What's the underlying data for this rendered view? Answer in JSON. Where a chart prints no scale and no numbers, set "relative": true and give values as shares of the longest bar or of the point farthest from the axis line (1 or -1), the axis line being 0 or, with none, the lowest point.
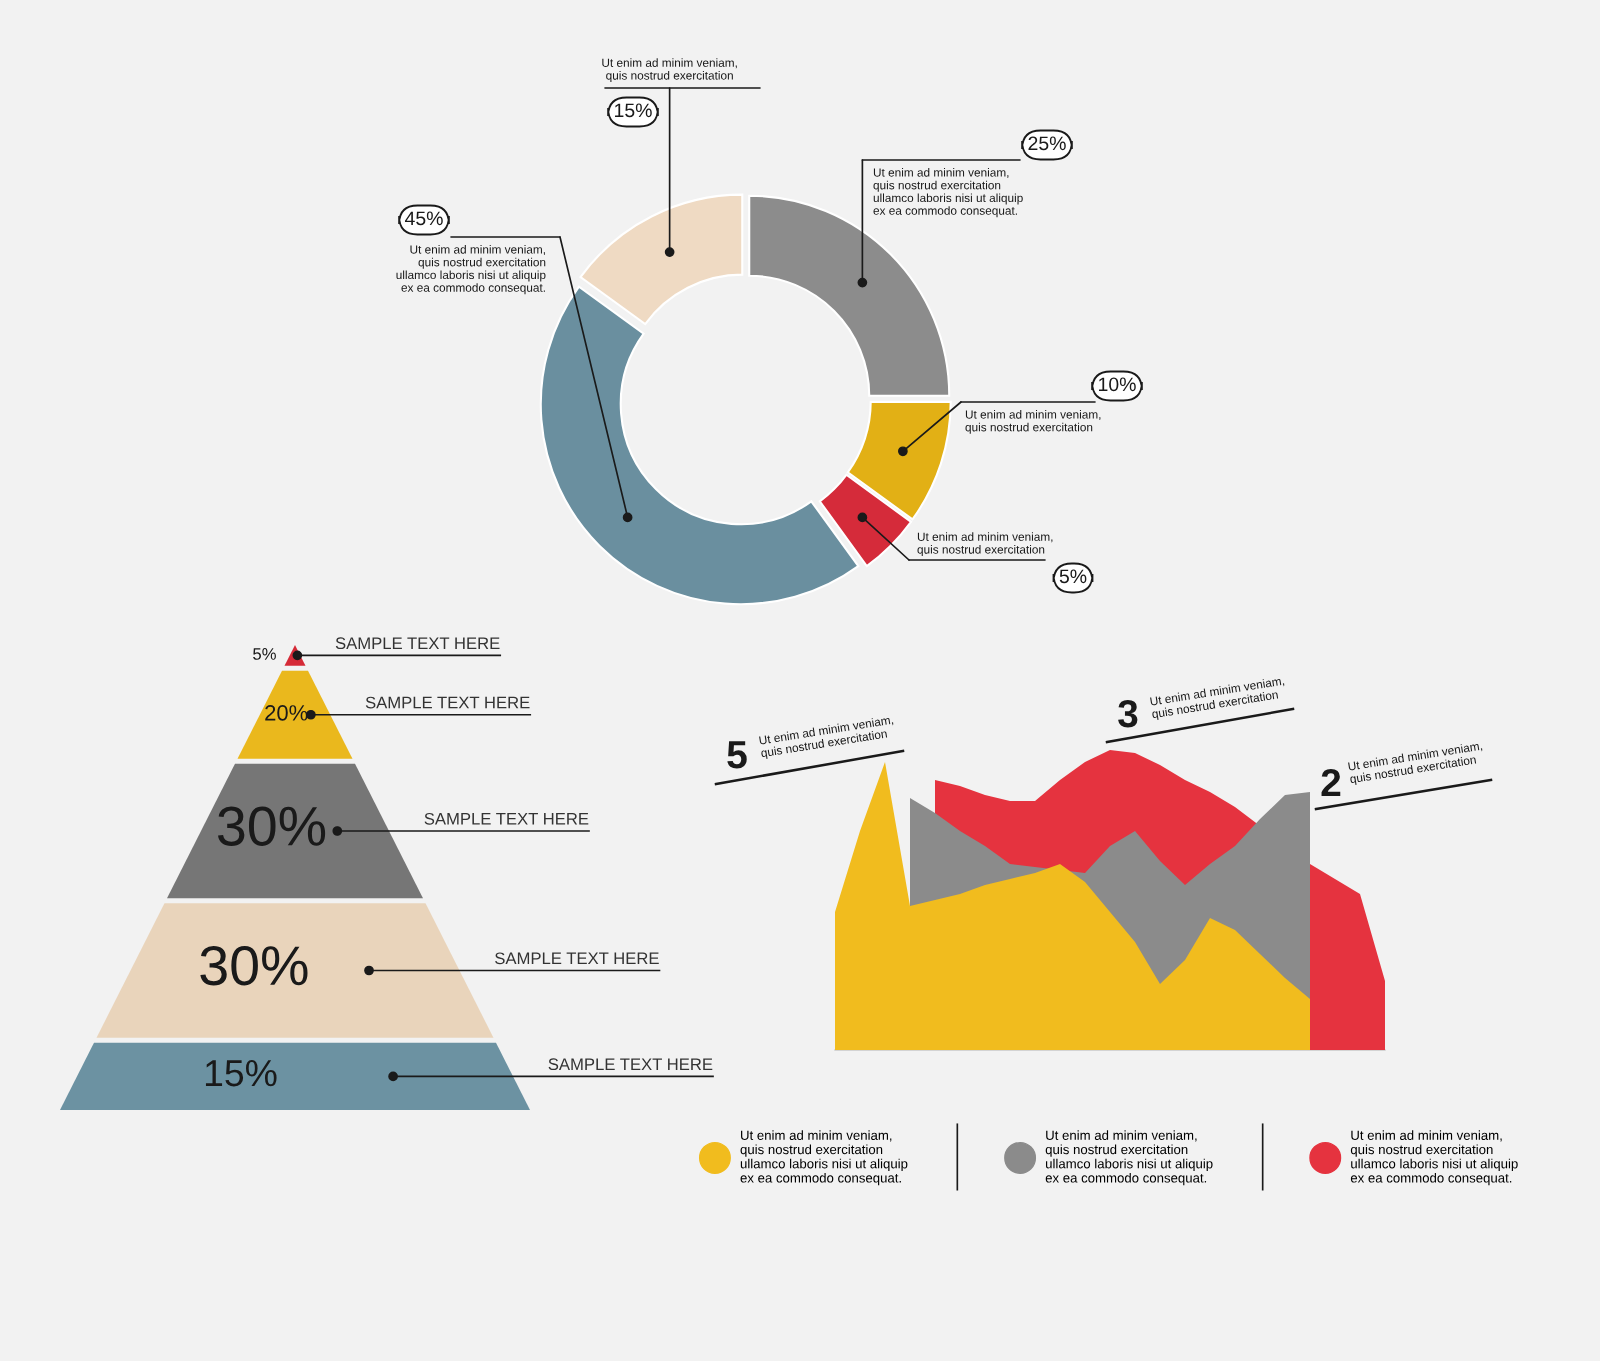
{
  "chart_data": [
    {
      "type": "donut",
      "categories": [
        "Ut enim ad minim veniam,\nquis nostrud exercitation\nullamco laboris nisi ut aliquip\nex ea commodo consequat.",
        "Ut enim ad minim veniam,\nquis nostrud exercitation",
        "Ut enim ad minim veniam,\nquis nostrud exercitation",
        "Ut enim ad minim veniam,\nquis nostrud exercitation\nullamco laboris nisi ut aliquip\nex ea commodo consequat.",
        "Ut enim ad minim veniam,\nquis nostrud exercitation"
      ],
      "values": [
        25,
        10,
        5,
        45,
        15
      ],
      "value_labels": [
        "25%",
        "10%",
        "5%",
        "45%",
        "15%"
      ],
      "colors": [
        "#8c8c8c",
        "#e2b015",
        "#d52b3a",
        "#6a8f9f",
        "#efdac3"
      ]
    },
    {
      "type": "other",
      "categories": [
        "SAMPLE TEXT HERE",
        "SAMPLE TEXT HERE",
        "SAMPLE TEXT HERE",
        "SAMPLE TEXT HERE",
        "SAMPLE TEXT HERE"
      ],
      "values": [
        5,
        20,
        30,
        30,
        15
      ],
      "value_labels": [
        "5%",
        "20%",
        "30%",
        "30%",
        "15%"
      ],
      "colors": [
        "#d52a37",
        "#eab81d",
        "#767676",
        "#e9d4bb",
        "#6c92a2"
      ]
    },
    {
      "type": "area",
      "relative": true,
      "categories": [
        null,
        null,
        null,
        null,
        null,
        null,
        null,
        null,
        null,
        null,
        null,
        null,
        null,
        null,
        null,
        null,
        null,
        null,
        null,
        null,
        null,
        null,
        null
      ],
      "series": [
        {
          "name": "Ut enim ad minim veniam,\nquis nostrud exercitation\nullamco laboris nisi ut aliquip\nex ea commodo consequat.",
          "color": "#f1bc1e",
          "values": [
            0.46,
            0.73,
            0.96,
            0.48,
            0.5,
            0.52,
            0.55,
            0.57,
            0.59,
            0.62,
            0.56,
            0.46,
            0.36,
            0.22,
            0.3,
            0.44,
            0.4,
            0.32,
            0.24,
            0.17,
            null,
            null,
            null
          ]
        },
        {
          "name": "Ut enim ad minim veniam,\nquis nostrud exercitation\nullamco laboris nisi ut aliquip\nex ea commodo consequat.",
          "color": "#8b8b8b",
          "values": [
            null,
            null,
            null,
            0.84,
            0.79,
            0.73,
            0.68,
            0.62,
            null,
            null,
            0.59,
            0.68,
            0.73,
            0.63,
            0.55,
            0.62,
            0.68,
            0.77,
            0.85,
            0.86,
            null,
            null,
            null
          ]
        },
        {
          "name": "Ut enim ad minim veniam,\nquis nostrud exercitation\nullamco laboris nisi ut aliquip\nex ea commodo consequat.",
          "color": "#e5333f",
          "values": [
            null,
            null,
            null,
            null,
            0.9,
            0.88,
            0.85,
            0.83,
            0.83,
            0.9,
            0.96,
            1.0,
            0.99,
            0.95,
            0.9,
            0.86,
            0.81,
            null,
            null,
            0.62,
            0.57,
            0.52,
            0.23
          ]
        }
      ],
      "annotations": [
        "5",
        "Ut enim ad minim veniam,\nquis nostrud exercitation",
        "3",
        "Ut enim ad minim veniam,\nquis nostrud exercitation",
        "2",
        "Ut enim ad minim veniam,\nquis nostrud exercitation"
      ],
      "legend": "bottom"
    }
  ]
}
